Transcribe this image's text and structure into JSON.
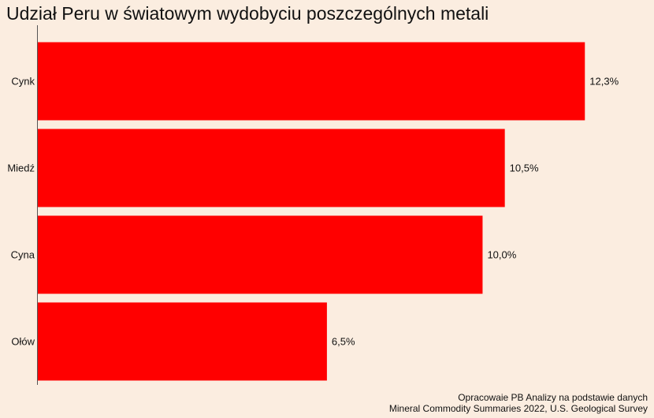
{
  "title": "Udział Peru w światowym wydobyciu poszczególnych metali",
  "source_lines": [
    "Opracowaie PB Analizy na podstawie danych",
    "Mineral Commodity Summaries 2022, U.S. Geological Survey"
  ],
  "colors": {
    "background": "#FBEDE0",
    "bar": "#FF0000",
    "axis": "#555555"
  },
  "chart_data": {
    "type": "bar",
    "orientation": "horizontal",
    "categories": [
      "Cynk",
      "Miedź",
      "Cyna",
      "Ołów"
    ],
    "values": [
      12.3,
      10.5,
      10.0,
      6.5
    ],
    "value_labels": [
      "12,3%",
      "10,5%",
      "10,0%",
      "6,5%"
    ],
    "unit": "%",
    "xlim": [
      0,
      13.5
    ],
    "grid": false,
    "legend": "none"
  }
}
